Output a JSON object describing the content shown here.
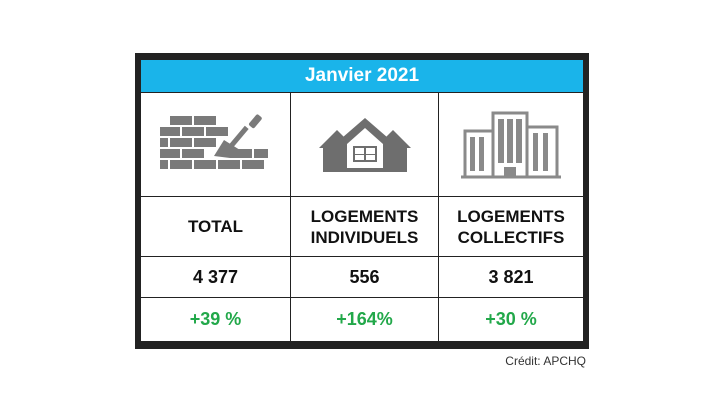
{
  "title": "Janvier 2021",
  "columns": [
    {
      "icon": "bricks-trowel-icon",
      "label_line1": "TOTAL",
      "label_line2": "",
      "value": "4 377",
      "change": "+39 %"
    },
    {
      "icon": "houses-icon",
      "label_line1": "LOGEMENTS",
      "label_line2": "INDIVIDUELS",
      "value": "556",
      "change": "+164%"
    },
    {
      "icon": "apartment-buildings-icon",
      "label_line1": "LOGEMENTS",
      "label_line2": "COLLECTIFS",
      "value": "3 821",
      "change": "+30 %"
    }
  ],
  "credit": "Crédit: APCHQ",
  "colors": {
    "header": "#1ab4ea",
    "positive": "#22a84a",
    "frame": "#222222",
    "icon": "#7a7a7a"
  }
}
